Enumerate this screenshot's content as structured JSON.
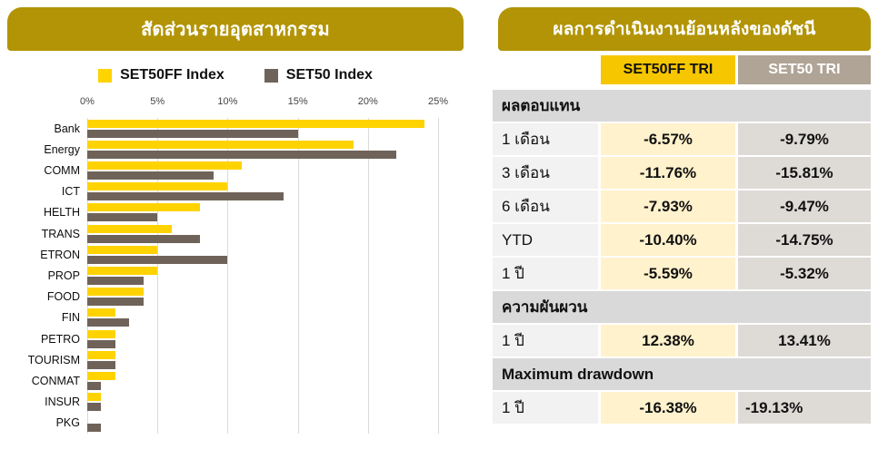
{
  "colors": {
    "panel_header_bg": "#B29406",
    "set50ff_yellow": "#FFD300",
    "set50_gray": "#6F6359",
    "col_header_yellow": "#F6C600",
    "col_header_taupe": "#AFA496",
    "section_header_bg": "#D9D9D9",
    "row_label_bg": "#F2F2F2",
    "value_cell_yellow_bg": "#FFF2CC",
    "value_cell_gray_bg": "#DEDAD6"
  },
  "chart_data": [
    {
      "type": "bar",
      "orientation": "horizontal",
      "title": "สัดส่วนรายอุตสาหกรรม",
      "categories": [
        "Bank",
        "Energy",
        "COMM",
        "ICT",
        "HELTH",
        "TRANS",
        "ETRON",
        "PROP",
        "FOOD",
        "FIN",
        "PETRO",
        "TOURISM",
        "CONMAT",
        "INSUR",
        "PKG"
      ],
      "series": [
        {
          "name": "SET50FF Index",
          "color": "#FFD300",
          "values": [
            24,
            19,
            11,
            10,
            8,
            6,
            5,
            5,
            4,
            2,
            2,
            2,
            2,
            1,
            0
          ]
        },
        {
          "name": "SET50 Index",
          "color": "#6F6359",
          "values": [
            15,
            22,
            9,
            14,
            5,
            8,
            10,
            4,
            4,
            3,
            2,
            2,
            1,
            1,
            1
          ]
        }
      ],
      "value_unit": "%",
      "xlim": [
        0,
        25
      ],
      "x_ticks": [
        "0%",
        "5%",
        "10%",
        "15%",
        "20%",
        "25%"
      ],
      "grid": true,
      "legend_position": "top"
    },
    {
      "type": "table",
      "title": "ผลการดำเนินงานย้อนหลังของดัชนี",
      "columns": [
        "",
        "SET50FF TRI",
        "SET50 TRI"
      ],
      "sections": [
        {
          "header": "ผลตอบแทน",
          "rows": [
            {
              "label": "1 เดือน",
              "values": [
                "-6.57%",
                "-9.79%"
              ]
            },
            {
              "label": "3 เดือน",
              "values": [
                "-11.76%",
                "-15.81%"
              ]
            },
            {
              "label": "6 เดือน",
              "values": [
                "-7.93%",
                "-9.47%"
              ]
            },
            {
              "label": "YTD",
              "values": [
                "-10.40%",
                "-14.75%"
              ]
            },
            {
              "label": "1 ปี",
              "values": [
                "-5.59%",
                "-5.32%"
              ]
            }
          ]
        },
        {
          "header": "ความผันผวน",
          "rows": [
            {
              "label": "1 ปี",
              "values": [
                "12.38%",
                "13.41%"
              ]
            }
          ]
        },
        {
          "header": "Maximum drawdown",
          "rows": [
            {
              "label": "1 ปี",
              "values": [
                "-16.38%",
                "-19.13%"
              ],
              "align": [
                "center",
                "left"
              ]
            }
          ]
        }
      ]
    }
  ]
}
